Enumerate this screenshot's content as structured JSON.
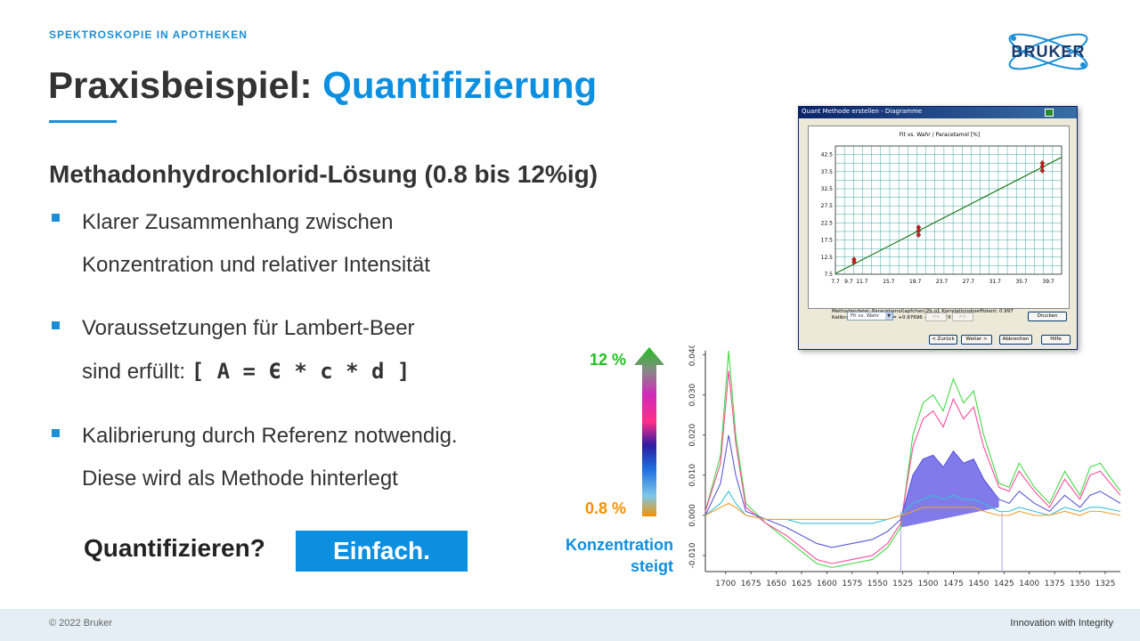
{
  "header": {
    "kicker": "SPEKTROSKOPIE IN APOTHEKEN",
    "title_part1": "Praxisbeispiel: ",
    "title_part2": "Quantifizierung",
    "logo_text": "BRUKER"
  },
  "content": {
    "subtitle": "Methadonhydrochlorid-Lösung (0.8 bis 12%ig)",
    "bullets": [
      {
        "line1": "Klarer Zusammenhang zwischen",
        "line2": "Konzentration und relativer Intensität"
      },
      {
        "line1": "Voraussetzungen für Lambert-Beer",
        "line2_prefix": "sind erfüllt: ",
        "formula": "[ A =  Є * c * d ]"
      },
      {
        "line1": "Kalibrierung durch Referenz notwendig.",
        "line2": "Diese wird als Methode hinterlegt"
      }
    ],
    "cta_label": "Quantifizieren?",
    "cta_button": "Einfach."
  },
  "scale": {
    "top_label": "12 %",
    "bottom_label": "0.8 %",
    "caption_line1": "Konzentration",
    "caption_line2": "steigt"
  },
  "dialog": {
    "title": "Quant Methode erstellen - Diagramme",
    "chart_title": "Fit vs. Wahr  /  Paracetamol  [%]",
    "info_line1": "Methodendatei:  Paracetamol(apfchen)2b.q1     Korrelationskoeffizient:  0.997",
    "info_line2": "Kalibrationsgleichung:     Y = +0.97696 +12.438*X",
    "select_value": "Fit vs. Wahr",
    "nav_prev": "<<",
    "nav_next": ">>",
    "print_button": "Drucken",
    "back_button": "< Zurück",
    "next_button": "Weiter >",
    "cancel_button": "Abbrechen",
    "help_button": "Hilfe",
    "y_ticks": [
      "42.5",
      "37.5",
      "32.5",
      "27.5",
      "22.5",
      "17.5",
      "12.5",
      "7.5"
    ],
    "x_ticks": [
      "7.7",
      "9.7",
      "11.7",
      "15.7",
      "19.7",
      "23.7",
      "27.7",
      "31.7",
      "35.7",
      "39.7"
    ]
  },
  "chart_data": [
    {
      "type": "scatter",
      "title": "Fit vs. Wahr  /  Paracetamol  [%]",
      "xlim": [
        7.7,
        41.7
      ],
      "ylim": [
        7.5,
        45
      ],
      "points": [
        {
          "x": 10.5,
          "y": 11.8
        },
        {
          "x": 10.5,
          "y": 11.0
        },
        {
          "x": 20.2,
          "y": 21.2
        },
        {
          "x": 20.2,
          "y": 20.2
        },
        {
          "x": 20.2,
          "y": 19.0
        },
        {
          "x": 38.8,
          "y": 40.0
        },
        {
          "x": 38.8,
          "y": 39.0
        },
        {
          "x": 38.8,
          "y": 37.8
        }
      ],
      "fit_line": {
        "x": [
          7.7,
          41.7
        ],
        "y": [
          7.7,
          41.7
        ]
      }
    },
    {
      "type": "line",
      "x_ticks": [
        "1700",
        "1675",
        "1650",
        "1625",
        "1600",
        "1575",
        "1550",
        "1525",
        "1500",
        "1475",
        "1450",
        "1425",
        "1400",
        "1375",
        "1350",
        "1325"
      ],
      "y_ticks": [
        "-0.010",
        "0.000",
        "0.010",
        "0.020",
        "0.030",
        "0.040"
      ],
      "xlim": [
        1720,
        1310
      ],
      "ylim": [
        -0.014,
        0.041
      ],
      "series": [
        {
          "color": "#45d945",
          "values": [
            [
              1720,
              0.001
            ],
            [
              1705,
              0.015
            ],
            [
              1697,
              0.041
            ],
            [
              1690,
              0.02
            ],
            [
              1680,
              0.003
            ],
            [
              1660,
              -0.002
            ],
            [
              1640,
              -0.006
            ],
            [
              1625,
              -0.009
            ],
            [
              1610,
              -0.012
            ],
            [
              1595,
              -0.013
            ],
            [
              1575,
              -0.012
            ],
            [
              1555,
              -0.011
            ],
            [
              1540,
              -0.008
            ],
            [
              1527,
              -0.003
            ],
            [
              1515,
              0.02
            ],
            [
              1505,
              0.028
            ],
            [
              1495,
              0.03
            ],
            [
              1485,
              0.026
            ],
            [
              1475,
              0.034
            ],
            [
              1465,
              0.028
            ],
            [
              1455,
              0.031
            ],
            [
              1445,
              0.02
            ],
            [
              1430,
              0.008
            ],
            [
              1420,
              0.007
            ],
            [
              1410,
              0.013
            ],
            [
              1395,
              0.007
            ],
            [
              1380,
              0.003
            ],
            [
              1365,
              0.011
            ],
            [
              1350,
              0.005
            ],
            [
              1340,
              0.012
            ],
            [
              1330,
              0.013
            ],
            [
              1310,
              0.006
            ]
          ]
        },
        {
          "color": "#ff4a9a",
          "values": [
            [
              1720,
              0.001
            ],
            [
              1705,
              0.013
            ],
            [
              1697,
              0.036
            ],
            [
              1690,
              0.018
            ],
            [
              1680,
              0.002
            ],
            [
              1660,
              -0.002
            ],
            [
              1640,
              -0.005
            ],
            [
              1625,
              -0.008
            ],
            [
              1610,
              -0.011
            ],
            [
              1595,
              -0.012
            ],
            [
              1575,
              -0.011
            ],
            [
              1555,
              -0.01
            ],
            [
              1540,
              -0.007
            ],
            [
              1527,
              -0.002
            ],
            [
              1515,
              0.017
            ],
            [
              1505,
              0.024
            ],
            [
              1495,
              0.026
            ],
            [
              1485,
              0.022
            ],
            [
              1475,
              0.029
            ],
            [
              1465,
              0.024
            ],
            [
              1455,
              0.027
            ],
            [
              1445,
              0.017
            ],
            [
              1430,
              0.007
            ],
            [
              1420,
              0.006
            ],
            [
              1410,
              0.011
            ],
            [
              1395,
              0.006
            ],
            [
              1380,
              0.002
            ],
            [
              1365,
              0.009
            ],
            [
              1350,
              0.004
            ],
            [
              1340,
              0.01
            ],
            [
              1330,
              0.011
            ],
            [
              1310,
              0.005
            ]
          ]
        },
        {
          "color": "#5959d9",
          "values": [
            [
              1720,
              0.0
            ],
            [
              1705,
              0.008
            ],
            [
              1697,
              0.02
            ],
            [
              1690,
              0.01
            ],
            [
              1680,
              0.001
            ],
            [
              1660,
              -0.001
            ],
            [
              1640,
              -0.003
            ],
            [
              1625,
              -0.005
            ],
            [
              1610,
              -0.007
            ],
            [
              1595,
              -0.008
            ],
            [
              1575,
              -0.007
            ],
            [
              1555,
              -0.006
            ],
            [
              1540,
              -0.004
            ],
            [
              1527,
              -0.001
            ],
            [
              1515,
              0.01
            ],
            [
              1505,
              0.014
            ],
            [
              1495,
              0.015
            ],
            [
              1485,
              0.012
            ],
            [
              1475,
              0.016
            ],
            [
              1465,
              0.013
            ],
            [
              1455,
              0.014
            ],
            [
              1445,
              0.009
            ],
            [
              1430,
              0.004
            ],
            [
              1420,
              0.003
            ],
            [
              1410,
              0.006
            ],
            [
              1395,
              0.003
            ],
            [
              1380,
              0.001
            ],
            [
              1365,
              0.005
            ],
            [
              1350,
              0.002
            ],
            [
              1340,
              0.005
            ],
            [
              1330,
              0.006
            ],
            [
              1310,
              0.003
            ]
          ]
        },
        {
          "color": "#39c0d8",
          "values": [
            [
              1720,
              0.0
            ],
            [
              1705,
              0.003
            ],
            [
              1697,
              0.006
            ],
            [
              1690,
              0.003
            ],
            [
              1680,
              0.0
            ],
            [
              1660,
              -0.001
            ],
            [
              1640,
              -0.001
            ],
            [
              1625,
              -0.002
            ],
            [
              1610,
              -0.002
            ],
            [
              1595,
              -0.002
            ],
            [
              1575,
              -0.002
            ],
            [
              1555,
              -0.002
            ],
            [
              1540,
              -0.001
            ],
            [
              1527,
              0.0
            ],
            [
              1515,
              0.003
            ],
            [
              1505,
              0.004
            ],
            [
              1495,
              0.005
            ],
            [
              1485,
              0.004
            ],
            [
              1475,
              0.005
            ],
            [
              1465,
              0.004
            ],
            [
              1455,
              0.004
            ],
            [
              1445,
              0.003
            ],
            [
              1430,
              0.001
            ],
            [
              1420,
              0.001
            ],
            [
              1410,
              0.002
            ],
            [
              1395,
              0.001
            ],
            [
              1380,
              0.0
            ],
            [
              1365,
              0.002
            ],
            [
              1350,
              0.001
            ],
            [
              1340,
              0.002
            ],
            [
              1330,
              0.002
            ],
            [
              1310,
              0.001
            ]
          ]
        },
        {
          "color": "#f0a030",
          "values": [
            [
              1720,
              0.0
            ],
            [
              1705,
              0.002
            ],
            [
              1697,
              0.003
            ],
            [
              1690,
              0.002
            ],
            [
              1680,
              0.0
            ],
            [
              1660,
              -0.001
            ],
            [
              1640,
              -0.001
            ],
            [
              1625,
              -0.001
            ],
            [
              1610,
              -0.001
            ],
            [
              1595,
              -0.001
            ],
            [
              1575,
              -0.001
            ],
            [
              1555,
              -0.001
            ],
            [
              1540,
              -0.001
            ],
            [
              1527,
              0.0
            ],
            [
              1515,
              0.001
            ],
            [
              1505,
              0.002
            ],
            [
              1495,
              0.002
            ],
            [
              1485,
              0.002
            ],
            [
              1475,
              0.002
            ],
            [
              1465,
              0.002
            ],
            [
              1455,
              0.002
            ],
            [
              1445,
              0.001
            ],
            [
              1430,
              0.0
            ],
            [
              1420,
              0.0
            ],
            [
              1410,
              0.001
            ],
            [
              1395,
              0.0
            ],
            [
              1380,
              0.0
            ],
            [
              1365,
              0.001
            ],
            [
              1350,
              0.0
            ],
            [
              1340,
              0.001
            ],
            [
              1330,
              0.001
            ],
            [
              1310,
              0.0
            ]
          ]
        }
      ],
      "integration_region": [
        1527,
        1427
      ]
    }
  ]
}
